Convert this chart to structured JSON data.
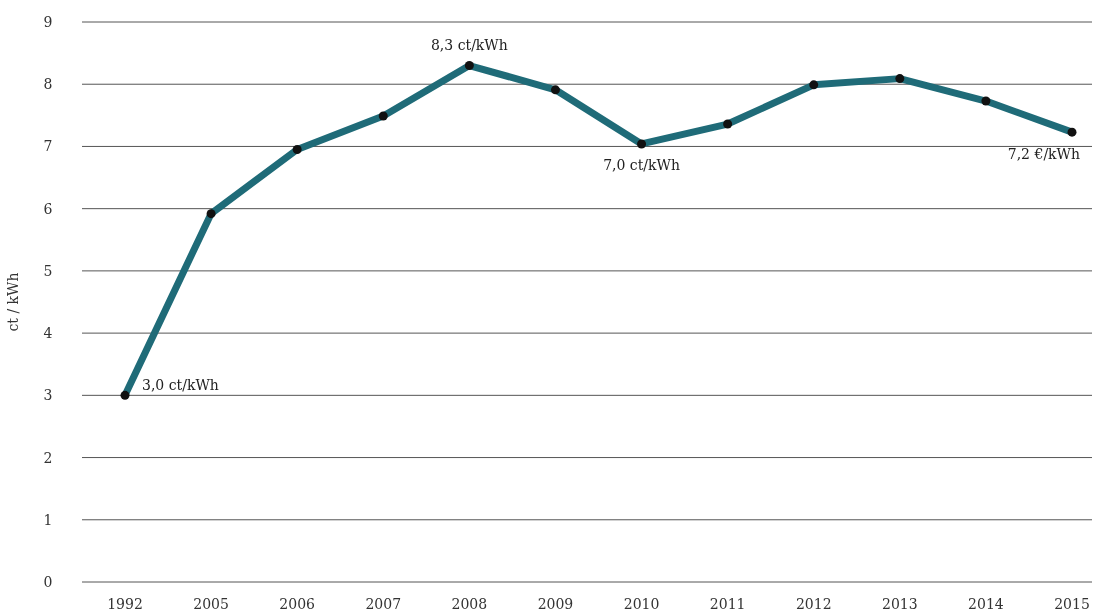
{
  "chart_data": {
    "type": "line",
    "ylabel": "ct / kWh",
    "categories": [
      "1992",
      "2005",
      "2006",
      "2007",
      "2008",
      "2009",
      "2010",
      "2011",
      "2012",
      "2013",
      "2014",
      "2015"
    ],
    "series": [
      {
        "color": "#1f6b78",
        "values": [
          3.0,
          5.92,
          6.95,
          7.49,
          8.3,
          7.91,
          7.04,
          7.36,
          7.99,
          8.09,
          7.73,
          7.23
        ]
      }
    ],
    "ylim": [
      0,
      9
    ],
    "yticks": [
      0,
      1,
      2,
      3,
      4,
      5,
      6,
      7,
      8,
      9
    ],
    "grid": "y",
    "marker": "circle",
    "line_style": "solid",
    "annotations": [
      {
        "text": "3,0 ct/kWh",
        "x": "1992",
        "y": 3.0
      },
      {
        "text": "8,3 ct/kWh",
        "x": "2008",
        "y": 8.3
      },
      {
        "text": "7,0 ct/kWh",
        "x": "2010",
        "y": 7.04
      },
      {
        "text": "7,2 €/kWh",
        "x": "2015",
        "y": 7.23
      }
    ]
  }
}
